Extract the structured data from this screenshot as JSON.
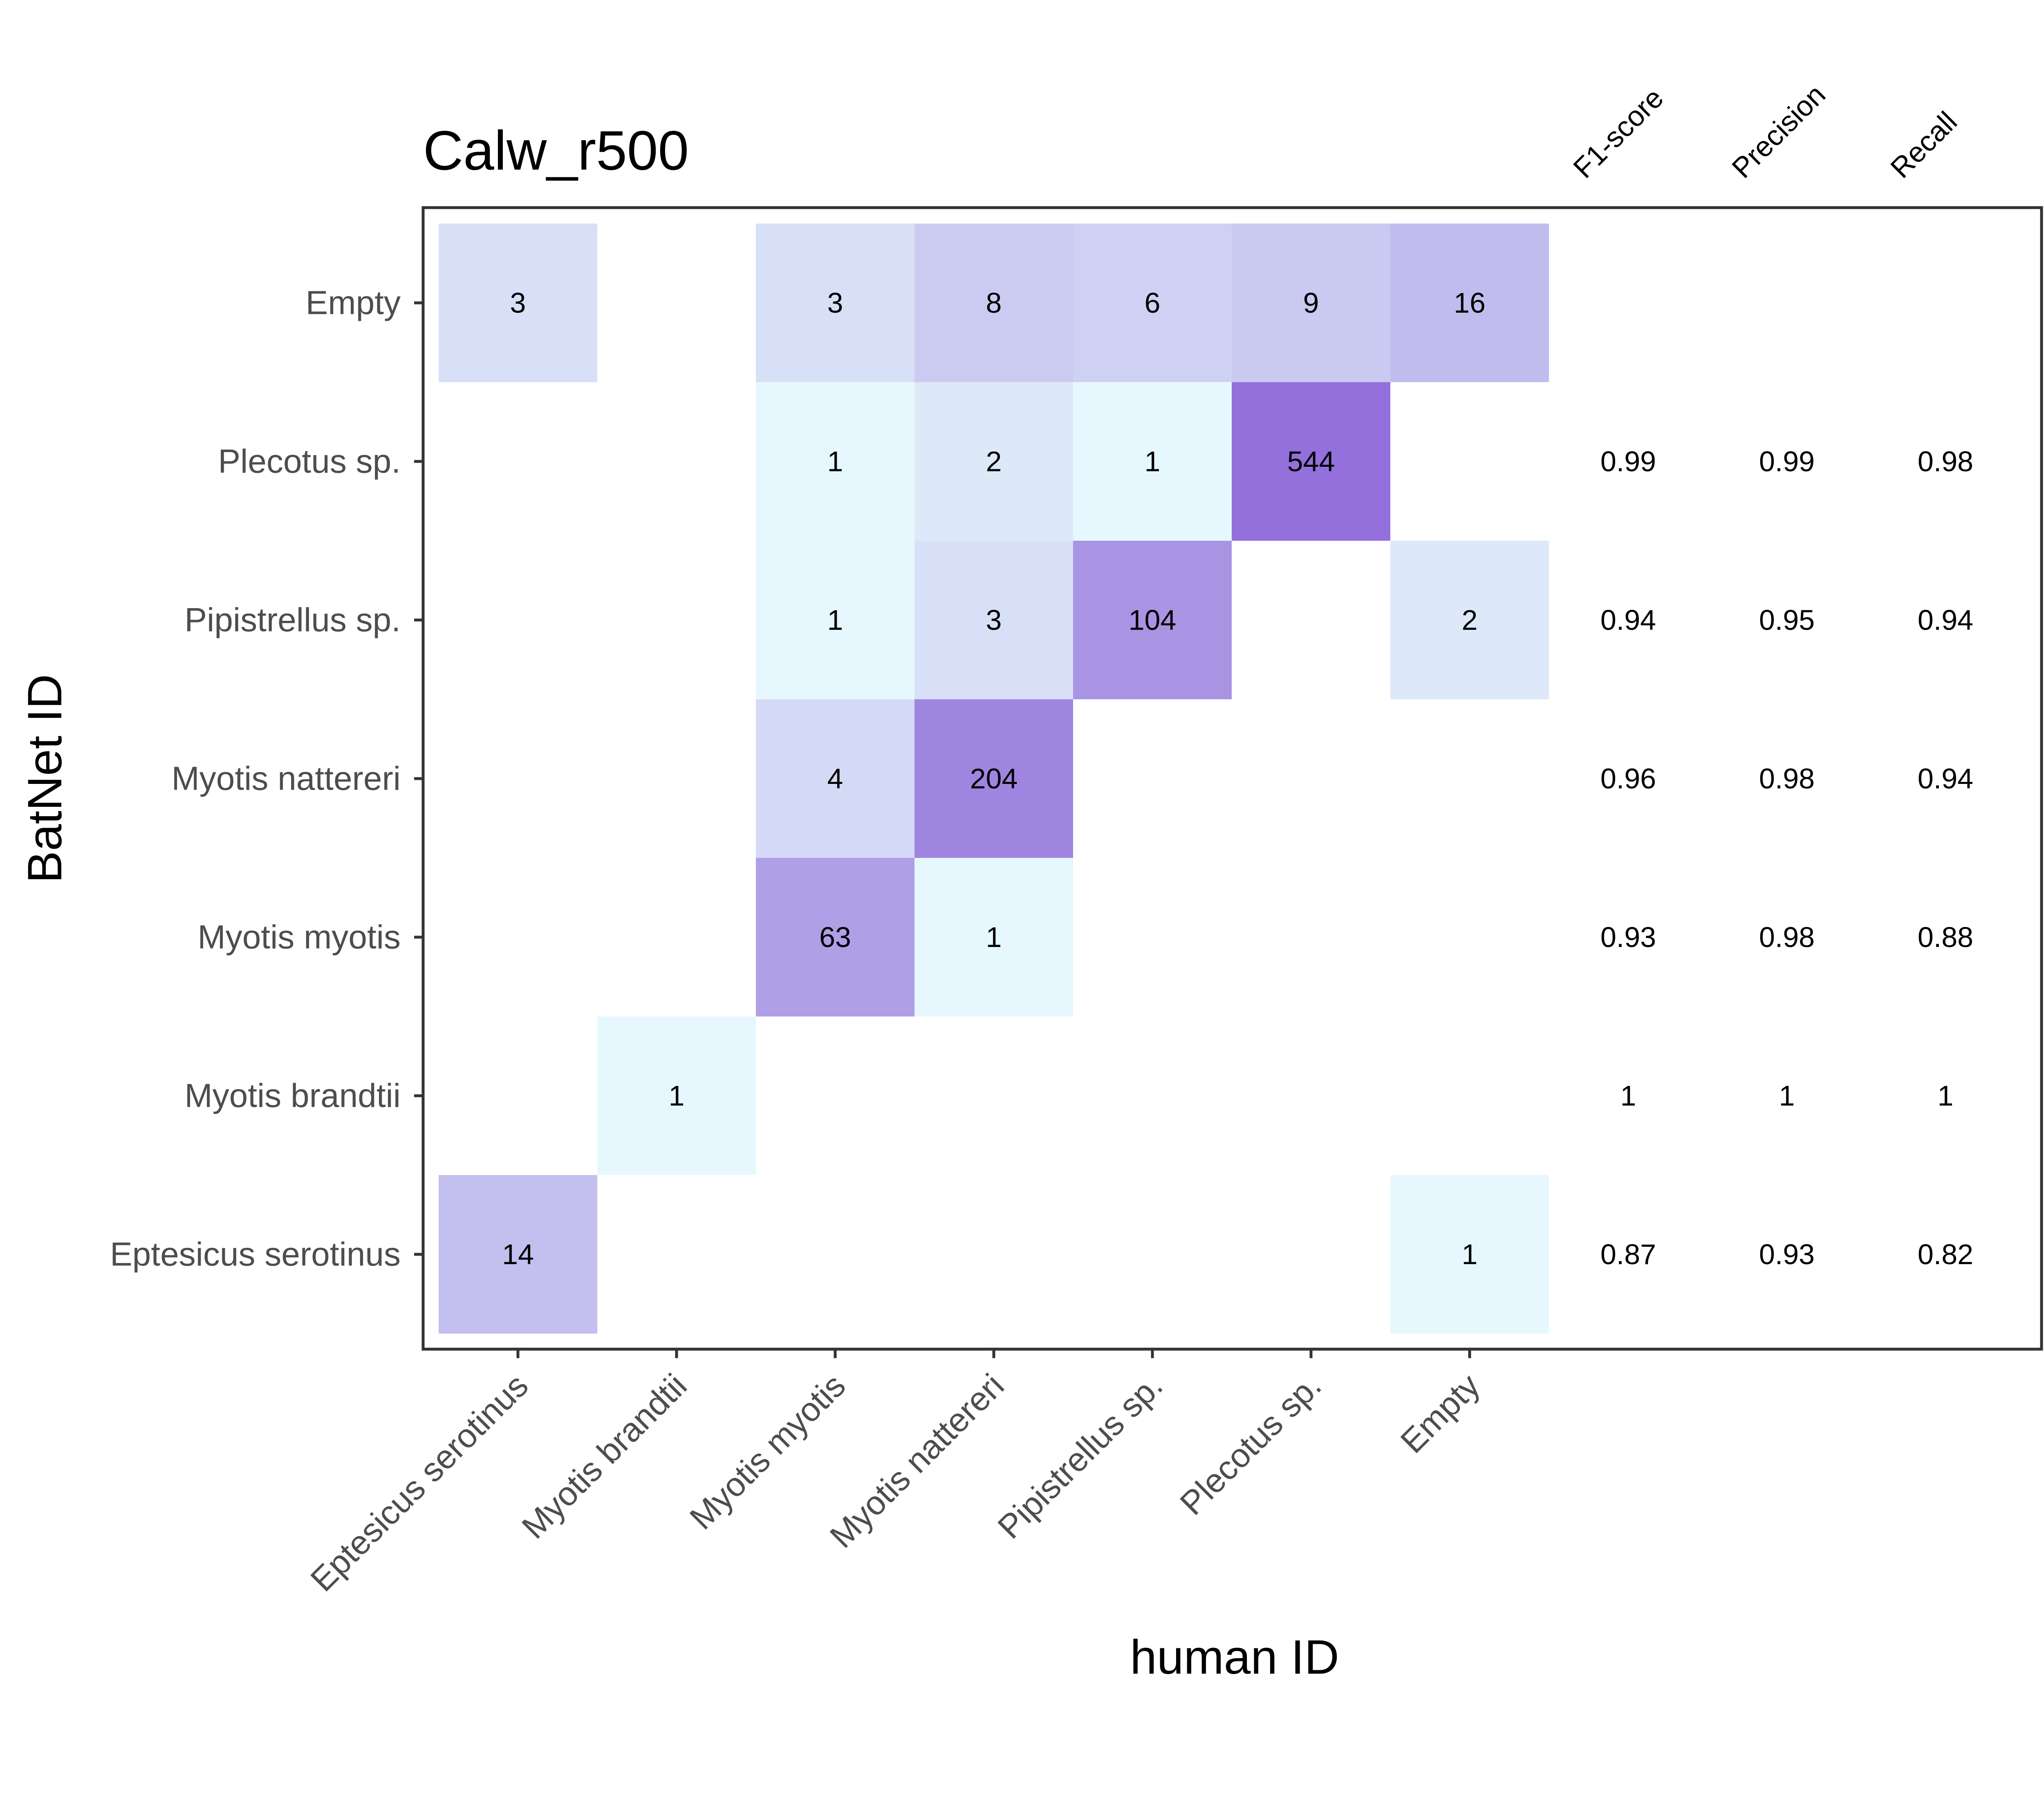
{
  "chart_data": {
    "type": "heatmap",
    "title": "Calw_r500",
    "xlabel": "human ID",
    "ylabel": "BatNet ID",
    "x_categories": [
      "Eptesicus serotinus",
      "Myotis brandtii",
      "Myotis myotis",
      "Myotis nattereri",
      "Pipistrellus sp.",
      "Plecotus sp.",
      "Empty"
    ],
    "y_categories": [
      "Eptesicus serotinus",
      "Myotis brandtii",
      "Myotis myotis",
      "Myotis nattereri",
      "Pipistrellus sp.",
      "Plecotus sp.",
      "Empty"
    ],
    "cells": [
      {
        "row": "Empty",
        "col": "Eptesicus serotinus",
        "value": 3
      },
      {
        "row": "Empty",
        "col": "Myotis myotis",
        "value": 3
      },
      {
        "row": "Empty",
        "col": "Myotis nattereri",
        "value": 8
      },
      {
        "row": "Empty",
        "col": "Pipistrellus sp.",
        "value": 6
      },
      {
        "row": "Empty",
        "col": "Plecotus sp.",
        "value": 9
      },
      {
        "row": "Empty",
        "col": "Empty",
        "value": 16
      },
      {
        "row": "Plecotus sp.",
        "col": "Myotis myotis",
        "value": 1
      },
      {
        "row": "Plecotus sp.",
        "col": "Myotis nattereri",
        "value": 2
      },
      {
        "row": "Plecotus sp.",
        "col": "Pipistrellus sp.",
        "value": 1
      },
      {
        "row": "Plecotus sp.",
        "col": "Plecotus sp.",
        "value": 544
      },
      {
        "row": "Pipistrellus sp.",
        "col": "Myotis myotis",
        "value": 1
      },
      {
        "row": "Pipistrellus sp.",
        "col": "Myotis nattereri",
        "value": 3
      },
      {
        "row": "Pipistrellus sp.",
        "col": "Pipistrellus sp.",
        "value": 104
      },
      {
        "row": "Pipistrellus sp.",
        "col": "Empty",
        "value": 2
      },
      {
        "row": "Myotis nattereri",
        "col": "Myotis myotis",
        "value": 4
      },
      {
        "row": "Myotis nattereri",
        "col": "Myotis nattereri",
        "value": 204
      },
      {
        "row": "Myotis myotis",
        "col": "Myotis myotis",
        "value": 63
      },
      {
        "row": "Myotis myotis",
        "col": "Myotis nattereri",
        "value": 1
      },
      {
        "row": "Myotis brandtii",
        "col": "Myotis brandtii",
        "value": 1
      },
      {
        "row": "Eptesicus serotinus",
        "col": "Eptesicus serotinus",
        "value": 14
      },
      {
        "row": "Eptesicus serotinus",
        "col": "Empty",
        "value": 1
      }
    ],
    "metrics": {
      "headers": [
        "F1-score",
        "Precision",
        "Recall"
      ],
      "rows": [
        {
          "row": "Plecotus sp.",
          "values": [
            "0.99",
            "0.99",
            "0.98"
          ]
        },
        {
          "row": "Pipistrellus sp.",
          "values": [
            "0.94",
            "0.95",
            "0.94"
          ]
        },
        {
          "row": "Myotis nattereri",
          "values": [
            "0.96",
            "0.98",
            "0.94"
          ]
        },
        {
          "row": "Myotis myotis",
          "values": [
            "0.93",
            "0.98",
            "0.88"
          ]
        },
        {
          "row": "Myotis brandtii",
          "values": [
            "1",
            "1",
            "1"
          ]
        },
        {
          "row": "Eptesicus serotinus",
          "values": [
            "0.87",
            "0.93",
            "0.82"
          ]
        }
      ]
    },
    "color_scale": {
      "low": "#e6f8fd",
      "high": "#9370db",
      "scale": "log"
    },
    "grid": false
  }
}
